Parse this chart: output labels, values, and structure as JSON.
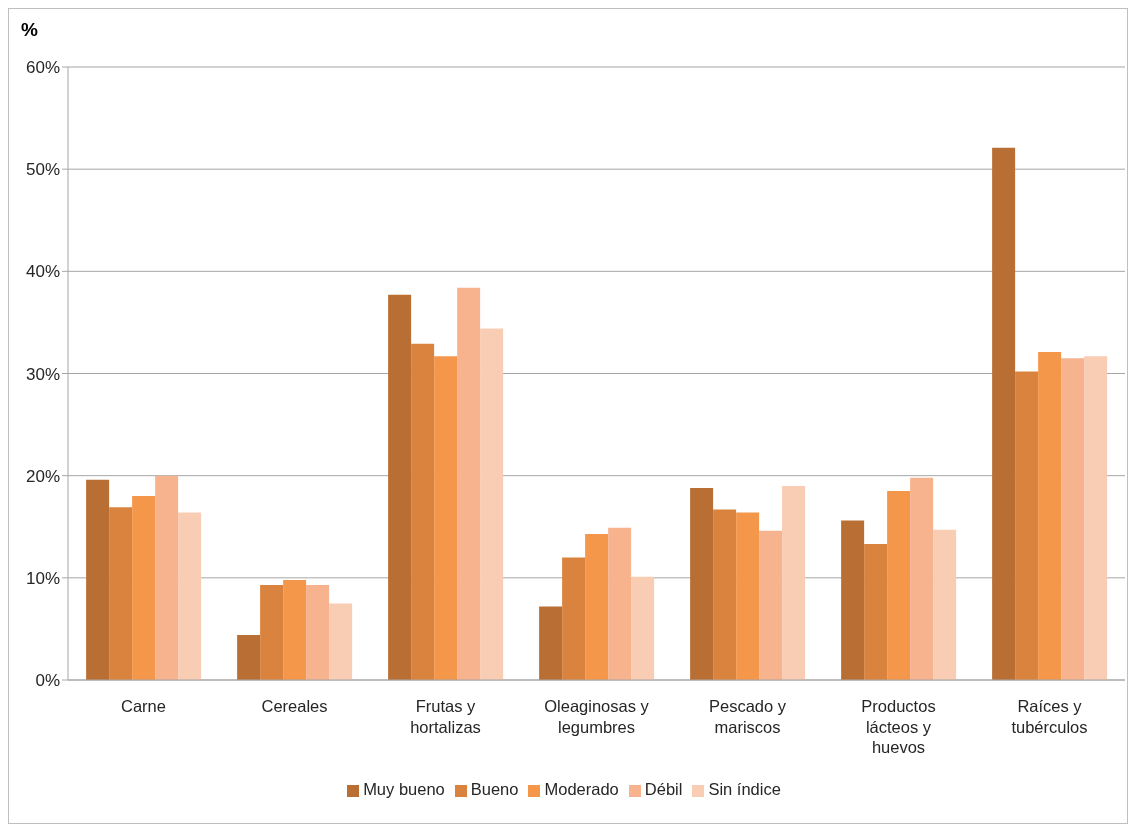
{
  "chart_data": {
    "type": "bar",
    "ylabel": "%",
    "categories": [
      "Carne",
      "Cereales",
      "Frutas y hortalizas",
      "Oleaginosas y legumbres",
      "Pescado y mariscos",
      "Productos lácteos y huevos",
      "Raíces y tubérculos"
    ],
    "series": [
      {
        "name": "Muy bueno",
        "color": "#b96f33",
        "values": [
          19.6,
          4.4,
          37.7,
          7.2,
          18.8,
          15.6,
          52.1
        ]
      },
      {
        "name": "Bueno",
        "color": "#d9833e",
        "values": [
          16.9,
          9.3,
          32.9,
          12.0,
          16.7,
          13.3,
          30.2
        ]
      },
      {
        "name": "Moderado",
        "color": "#f4974a",
        "values": [
          18.0,
          9.8,
          31.7,
          14.3,
          16.4,
          18.5,
          32.1
        ]
      },
      {
        "name": "Débil",
        "color": "#f6b38e",
        "values": [
          20.0,
          9.3,
          38.4,
          14.9,
          14.6,
          19.8,
          31.5
        ]
      },
      {
        "name": "Sin índice",
        "color": "#f9cdb4",
        "values": [
          16.4,
          7.5,
          34.4,
          10.1,
          19.0,
          14.7,
          31.7
        ]
      }
    ],
    "ylim": [
      0,
      60
    ],
    "yticks": [
      {
        "value": 0,
        "label": "0%"
      },
      {
        "value": 10,
        "label": "10%"
      },
      {
        "value": 20,
        "label": "20%"
      },
      {
        "value": 30,
        "label": "30%"
      },
      {
        "value": 40,
        "label": "40%"
      },
      {
        "value": 50,
        "label": "50%"
      },
      {
        "value": 60,
        "label": "60%"
      }
    ],
    "grid": "y",
    "legend": "bottom"
  }
}
